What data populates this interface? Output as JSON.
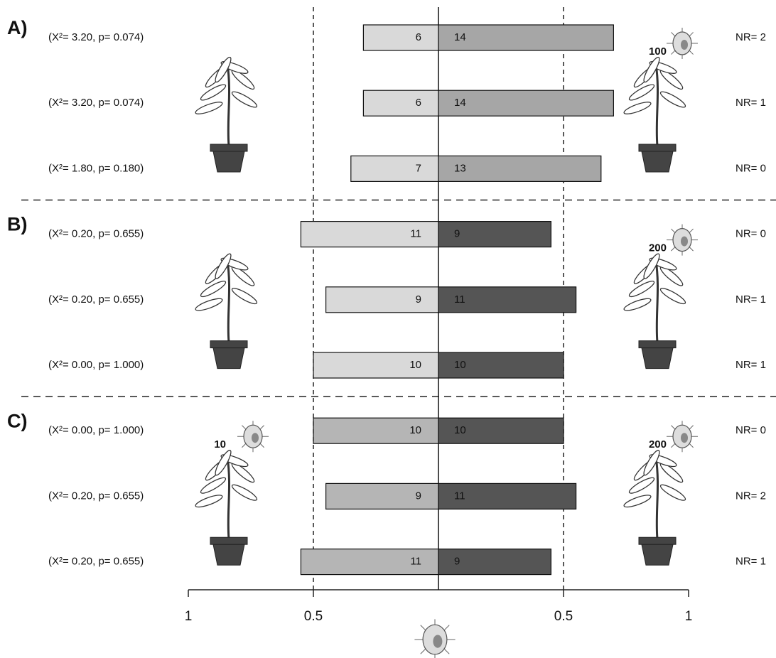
{
  "chart_data": {
    "type": "diverging-bar",
    "categories": [
      "(X²= 3.20, p= 0.074)",
      "(X²= 3.20, p= 0.074)",
      "(X²= 1.80, p= 0.180)",
      "(X²= 0.20, p= 0.655)",
      "(X²= 0.20, p= 0.655)",
      "(X²= 0.00, p= 1.000)",
      "(X²= 0.00, p= 1.000)",
      "(X²= 0.20, p= 0.655)",
      "(X²= 0.20, p= 0.655)"
    ],
    "nr_labels": [
      "NR= 2",
      "NR= 1",
      "NR= 0",
      "NR= 0",
      "NR= 1",
      "NR= 1",
      "NR= 0",
      "NR= 2",
      "NR= 1"
    ],
    "left_values": [
      6,
      6,
      7,
      11,
      9,
      10,
      10,
      9,
      11
    ],
    "right_values": [
      14,
      14,
      13,
      9,
      11,
      10,
      10,
      11,
      9
    ],
    "left_colors": [
      "#d9d9d9",
      "#d9d9d9",
      "#d9d9d9",
      "#d9d9d9",
      "#d9d9d9",
      "#d9d9d9",
      "#b5b5b5",
      "#b5b5b5",
      "#b5b5b5"
    ],
    "right_colors": [
      "#a6a6a6",
      "#a6a6a6",
      "#a6a6a6",
      "#555555",
      "#555555",
      "#555555",
      "#555555",
      "#555555",
      "#555555"
    ],
    "groups": [
      {
        "label": "A)",
        "left_plant": null,
        "right_plant": 100
      },
      {
        "label": "B)",
        "left_plant": null,
        "right_plant": 200
      },
      {
        "label": "C)",
        "left_plant": 10,
        "right_plant": 200
      }
    ],
    "xlim": [
      -20,
      20
    ],
    "xticks": [
      {
        "value": -20,
        "label": "1"
      },
      {
        "value": -10,
        "label": "0.5"
      },
      {
        "value": 10,
        "label": "0.5"
      },
      {
        "value": 20,
        "label": "1"
      }
    ],
    "grid": true
  }
}
